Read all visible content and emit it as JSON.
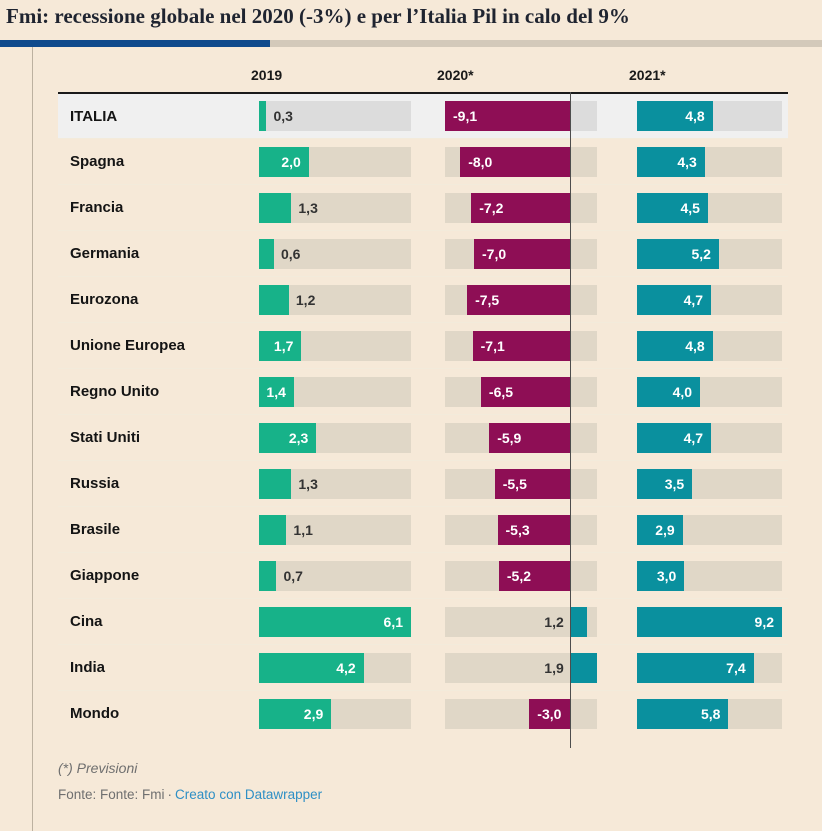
{
  "chart_data": {
    "type": "bar",
    "title": "Fmi: recessione globale nel 2020 (-3%) e per l’Italia Pil in calo del 9%",
    "columns": [
      "2019",
      "2020*",
      "2021*"
    ],
    "column_ranges": [
      [
        0,
        6.1
      ],
      [
        -9.1,
        1.9
      ],
      [
        0,
        9.2
      ]
    ],
    "legend_position": "none",
    "grid": false,
    "rows": [
      {
        "label": "ITALIA",
        "values": [
          0.3,
          -9.1,
          4.8
        ],
        "display": [
          "0,3",
          "-9,1",
          "4,8"
        ],
        "highlight": true
      },
      {
        "label": "Spagna",
        "values": [
          2.0,
          -8.0,
          4.3
        ],
        "display": [
          "2,0",
          "-8,0",
          "4,3"
        ],
        "highlight": false
      },
      {
        "label": "Francia",
        "values": [
          1.3,
          -7.2,
          4.5
        ],
        "display": [
          "1,3",
          "-7,2",
          "4,5"
        ],
        "highlight": false
      },
      {
        "label": "Germania",
        "values": [
          0.6,
          -7.0,
          5.2
        ],
        "display": [
          "0,6",
          "-7,0",
          "5,2"
        ],
        "highlight": false
      },
      {
        "label": "Eurozona",
        "values": [
          1.2,
          -7.5,
          4.7
        ],
        "display": [
          "1,2",
          "-7,5",
          "4,7"
        ],
        "highlight": false
      },
      {
        "label": "Unione Europea",
        "values": [
          1.7,
          -7.1,
          4.8
        ],
        "display": [
          "1,7",
          "-7,1",
          "4,8"
        ],
        "highlight": false
      },
      {
        "label": "Regno Unito",
        "values": [
          1.4,
          -6.5,
          4.0
        ],
        "display": [
          "1,4",
          "-6,5",
          "4,0"
        ],
        "highlight": false
      },
      {
        "label": "Stati Uniti",
        "values": [
          2.3,
          -5.9,
          4.7
        ],
        "display": [
          "2,3",
          "-5,9",
          "4,7"
        ],
        "highlight": false
      },
      {
        "label": "Russia",
        "values": [
          1.3,
          -5.5,
          3.5
        ],
        "display": [
          "1,3",
          "-5,5",
          "3,5"
        ],
        "highlight": false
      },
      {
        "label": "Brasile",
        "values": [
          1.1,
          -5.3,
          2.9
        ],
        "display": [
          "1,1",
          "-5,3",
          "2,9"
        ],
        "highlight": false
      },
      {
        "label": "Giappone",
        "values": [
          0.7,
          -5.2,
          3.0
        ],
        "display": [
          "0,7",
          "-5,2",
          "3,0"
        ],
        "highlight": false
      },
      {
        "label": "Cina",
        "values": [
          6.1,
          1.2,
          9.2
        ],
        "display": [
          "6,1",
          "1,2",
          "9,2"
        ],
        "highlight": false
      },
      {
        "label": "India",
        "values": [
          4.2,
          1.9,
          7.4
        ],
        "display": [
          "4,2",
          "1,9",
          "7,4"
        ],
        "highlight": false
      },
      {
        "label": "Mondo",
        "values": [
          2.9,
          -3.0,
          5.8
        ],
        "display": [
          "2,9",
          "-3,0",
          "5,8"
        ],
        "highlight": false
      }
    ],
    "colors": {
      "bar_2019_green": "#17b289",
      "bar_negative_magenta": "#8e0e55",
      "bar_teal": "#0a909e",
      "track": "#e0d7c7",
      "track_highlight_row": "#dcdcdc",
      "highlight_row_bg": "#f0f0f0",
      "zero_line": "#4d4d4d",
      "accent_blue": "#0f4a8c",
      "accent_tan": "#d3c9ba",
      "page_bg": "#f6e9d8",
      "link_blue": "#2e8fc5"
    }
  },
  "footer": {
    "note": "(*) Previsioni",
    "source": "Fonte: Fonte: Fmi",
    "separator": "·",
    "credit": "Creato con Datawrapper"
  }
}
